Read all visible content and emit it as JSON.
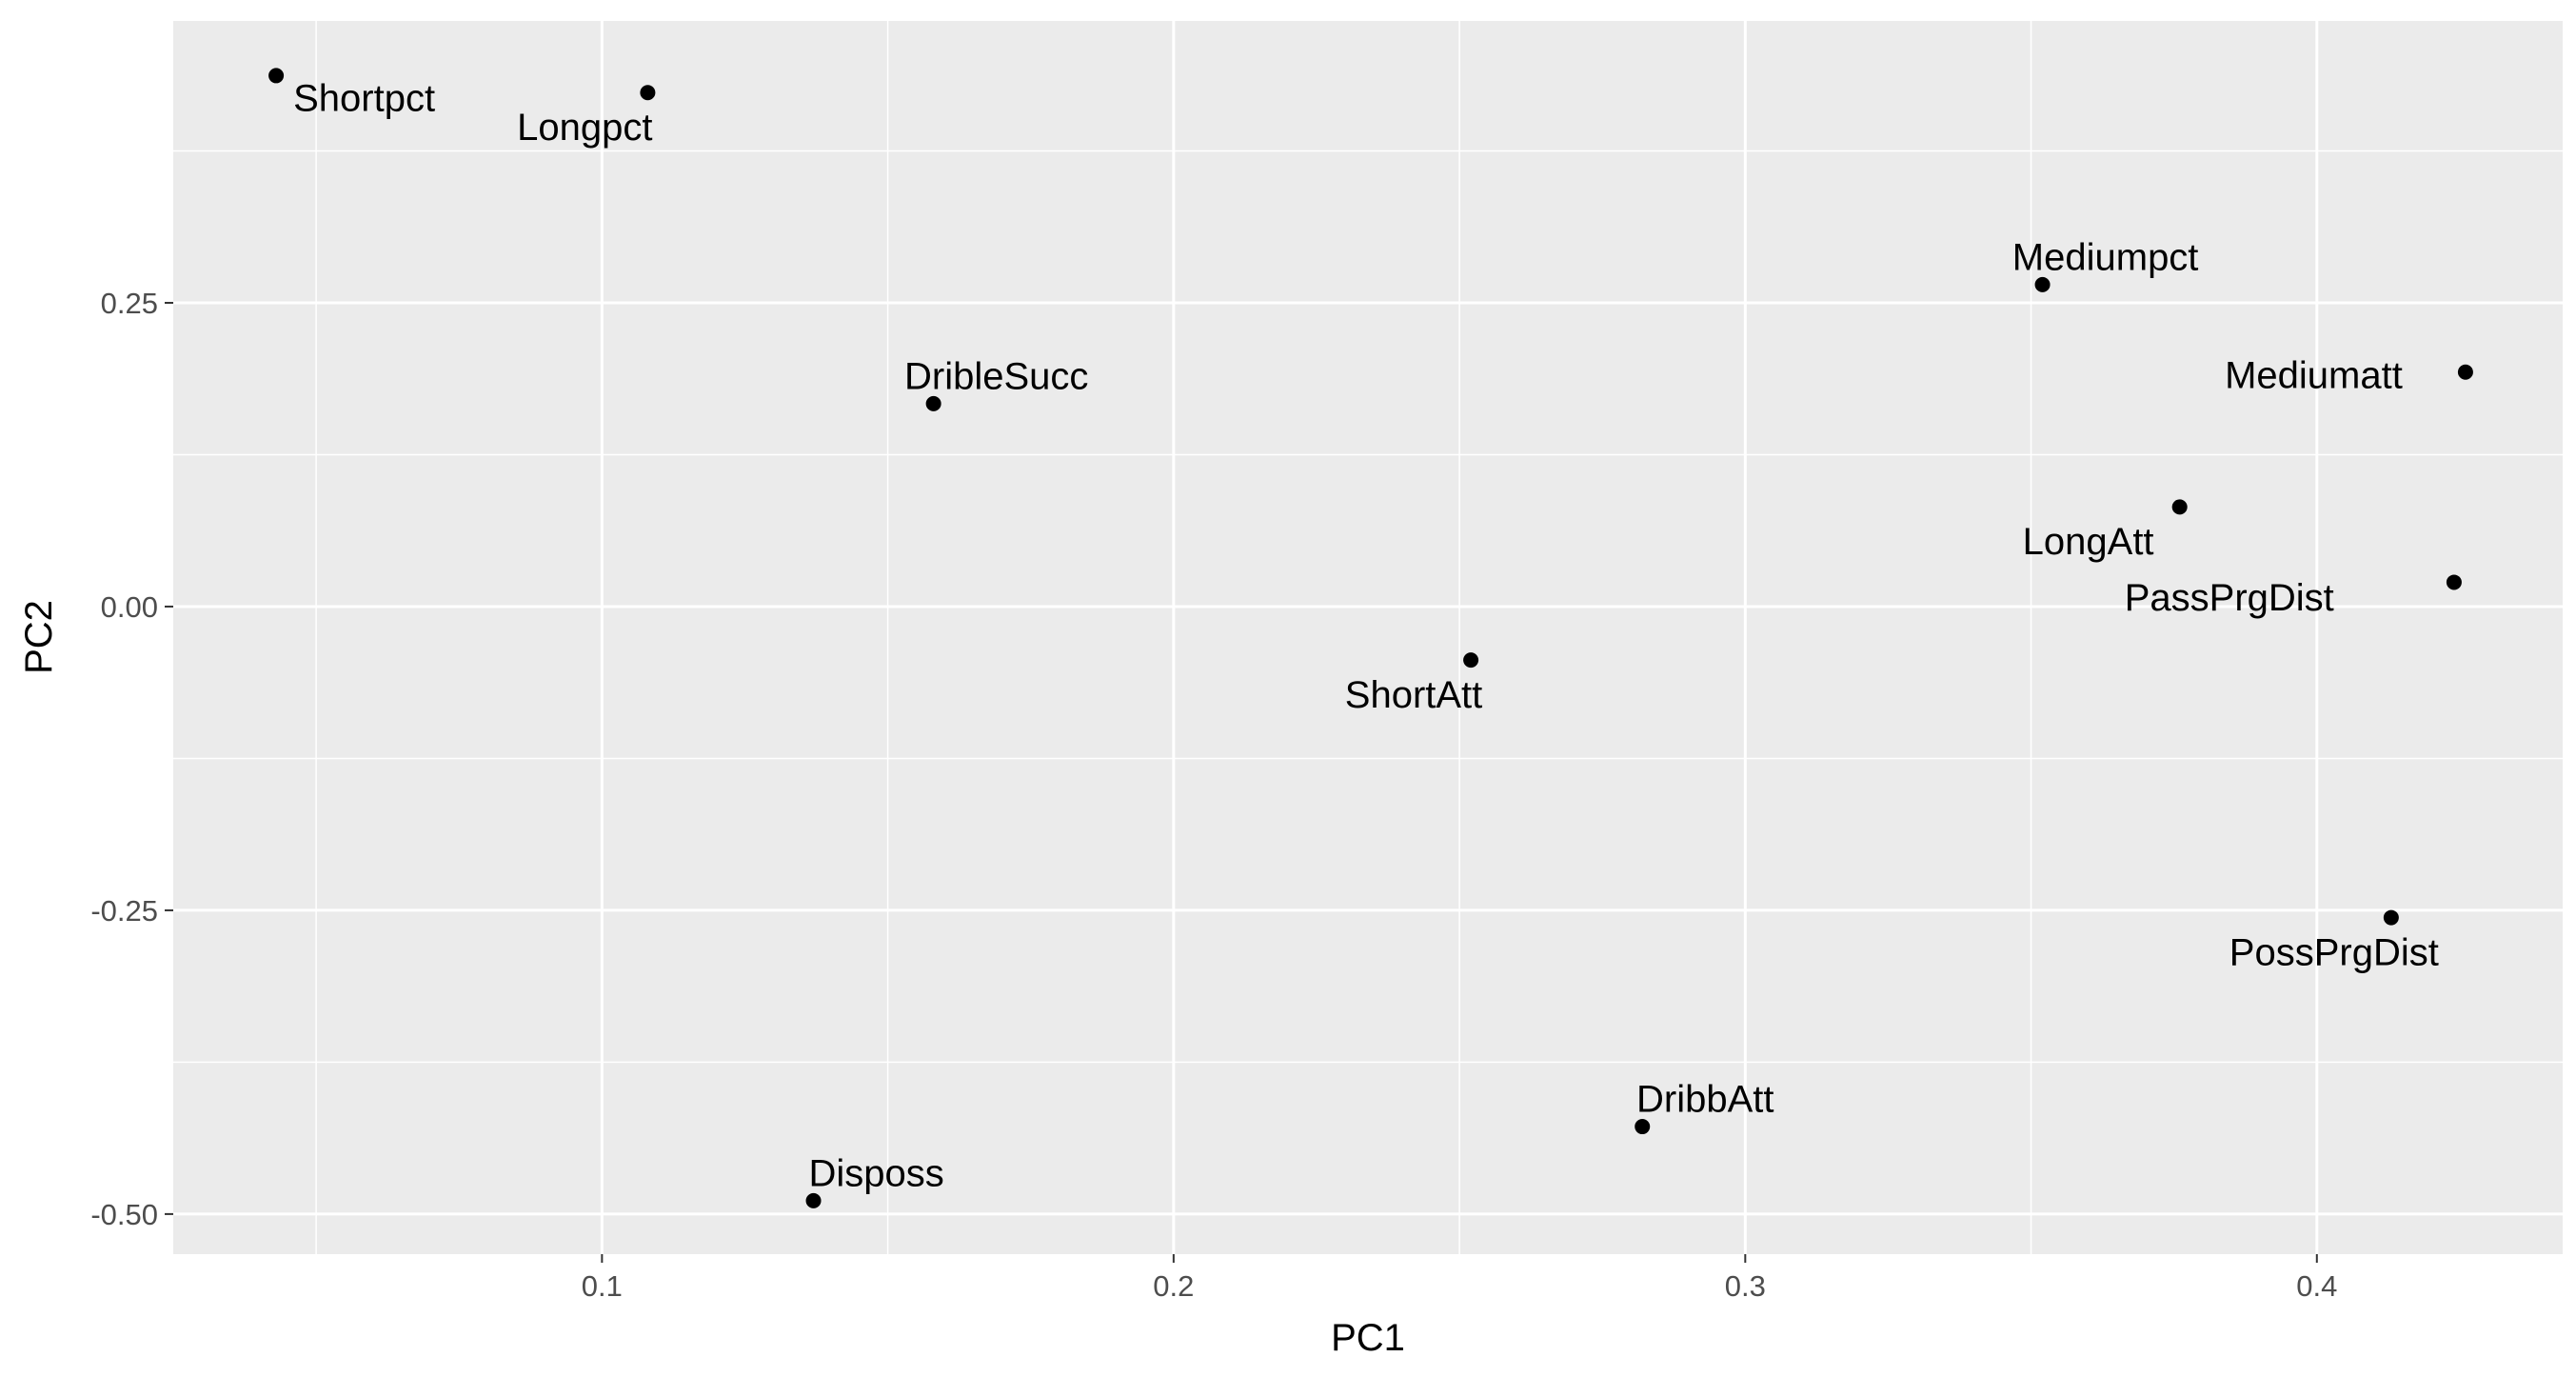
{
  "chart_data": {
    "type": "scatter",
    "title": "",
    "xlabel": "PC1",
    "ylabel": "PC2",
    "xlim": [
      0.025,
      0.443
    ],
    "ylim": [
      -0.533,
      0.482
    ],
    "x_ticks": [
      0.1,
      0.2,
      0.3,
      0.4
    ],
    "x_tick_labels": [
      "0.1",
      "0.2",
      "0.3",
      "0.4"
    ],
    "y_ticks": [
      -0.5,
      -0.25,
      0.0,
      0.25
    ],
    "y_tick_labels": [
      "-0.50",
      "-0.25",
      "0.00",
      "0.25"
    ],
    "grid": true,
    "legend": "none",
    "colors": {
      "panel": "#ebebeb",
      "grid": "#ffffff",
      "point": "#000000",
      "tick_text": "#4d4d4d",
      "tick_mark": "#333333"
    },
    "points": [
      {
        "label": "Shortpct",
        "x": 0.043,
        "y": 0.437,
        "anchor": "start",
        "dx": 0.003,
        "dy": -0.018
      },
      {
        "label": "Longpct",
        "x": 0.108,
        "y": 0.423,
        "anchor": "middle",
        "dx": -0.011,
        "dy": -0.028
      },
      {
        "label": "Mediumpct",
        "x": 0.352,
        "y": 0.265,
        "anchor": "middle",
        "dx": 0.011,
        "dy": 0.023
      },
      {
        "label": "DribleSucc",
        "x": 0.158,
        "y": 0.167,
        "anchor": "middle",
        "dx": 0.011,
        "dy": 0.023
      },
      {
        "label": "Mediumatt",
        "x": 0.426,
        "y": 0.193,
        "anchor": "end",
        "dx": -0.011,
        "dy": -0.002
      },
      {
        "label": "LongAtt",
        "x": 0.376,
        "y": 0.082,
        "anchor": "middle",
        "dx": -0.016,
        "dy": -0.028
      },
      {
        "label": "PassPrgDist",
        "x": 0.424,
        "y": 0.02,
        "anchor": "end",
        "dx": -0.021,
        "dy": -0.012
      },
      {
        "label": "ShortAtt",
        "x": 0.252,
        "y": -0.044,
        "anchor": "middle",
        "dx": -0.01,
        "dy": -0.028
      },
      {
        "label": "PossPrgDist",
        "x": 0.413,
        "y": -0.256,
        "anchor": "middle",
        "dx": -0.01,
        "dy": -0.028
      },
      {
        "label": "DribbAtt",
        "x": 0.282,
        "y": -0.428,
        "anchor": "middle",
        "dx": 0.011,
        "dy": 0.023
      },
      {
        "label": "Disposs",
        "x": 0.137,
        "y": -0.489,
        "anchor": "middle",
        "dx": 0.011,
        "dy": 0.023
      }
    ]
  }
}
